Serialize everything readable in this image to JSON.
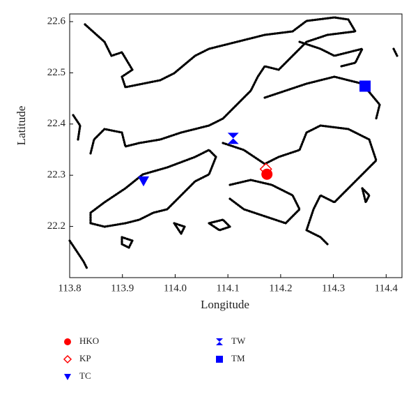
{
  "chart_data": {
    "type": "scatter",
    "x_label": "Longitude",
    "y_label": "Latitude",
    "xlim": [
      113.8,
      114.43
    ],
    "xticks": [
      113.8,
      113.9,
      {
        "value": 114,
        "label": "114.0"
      },
      114.1,
      114.2,
      114.3,
      114.4
    ],
    "ylim": [
      22.1,
      22.615
    ],
    "yticks": [
      22.2,
      22.3,
      22.4,
      22.5,
      22.6
    ],
    "series": [
      {
        "name": "HKO",
        "color": "#ff0000",
        "marker": "circle",
        "x": [
          114.174
        ],
        "values": [
          22.302
        ]
      },
      {
        "name": "KP",
        "color": "#ff0000",
        "marker": "diamond-open",
        "x": [
          114.172
        ],
        "values": [
          22.312
        ]
      },
      {
        "name": "TC",
        "color": "#0000ff",
        "marker": "triangle-down",
        "x": [
          113.94
        ],
        "values": [
          22.289
        ]
      },
      {
        "name": "TW",
        "color": "#0000ff",
        "marker": "bowtie",
        "x": [
          114.11
        ],
        "values": [
          22.372
        ]
      },
      {
        "name": "TM",
        "color": "#0000ff",
        "marker": "square",
        "x": [
          114.36
        ],
        "values": [
          22.474
        ]
      }
    ]
  }
}
